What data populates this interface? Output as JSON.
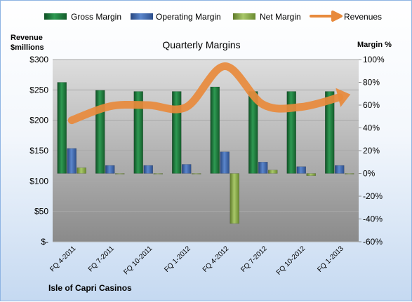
{
  "chart_data": {
    "type": "bar",
    "title": "Quarterly Margins",
    "company": "Isle of Capri Casinos",
    "left_axis_title": [
      "Revenue",
      "$millions"
    ],
    "right_axis_title": "Margin %",
    "categories": [
      "FQ 4-2011",
      "FQ 7-2011",
      "FQ 10-2011",
      "FQ 1-2012",
      "FQ 4-2012",
      "FQ 7-2012",
      "FQ 10-2012",
      "FQ 1-2013"
    ],
    "left_ticks": [
      "$300",
      "$250",
      "$200",
      "$150",
      "$100",
      "$50",
      "$-"
    ],
    "right_ticks": [
      "100%",
      "80%",
      "60%",
      "40%",
      "20%",
      "0%",
      "-20%",
      "-40%",
      "-60%"
    ],
    "ylim_left": [
      0,
      300
    ],
    "ylim_right": [
      -60,
      100
    ],
    "grid": true,
    "legend_position": "top",
    "series": [
      {
        "name": "Gross Margin",
        "kind": "bar",
        "axis": "right",
        "color": "#1e7a3c",
        "values": [
          80,
          73,
          72,
          72,
          76,
          72,
          72,
          72
        ]
      },
      {
        "name": "Operating Margin",
        "kind": "bar",
        "axis": "right",
        "color": "#3f6bb3",
        "values": [
          22,
          7,
          7,
          8,
          19,
          10,
          6,
          7
        ]
      },
      {
        "name": "Net Margin",
        "kind": "bar",
        "axis": "right",
        "color": "#8db04a",
        "values": [
          5,
          -0.5,
          -0.5,
          -0.5,
          -44,
          3,
          -2,
          -0.5
        ]
      },
      {
        "name": "Revenues",
        "kind": "line",
        "axis": "left",
        "color": "#e88a3c",
        "values": [
          200,
          223,
          225,
          222,
          289,
          226,
          222,
          238
        ]
      }
    ]
  }
}
